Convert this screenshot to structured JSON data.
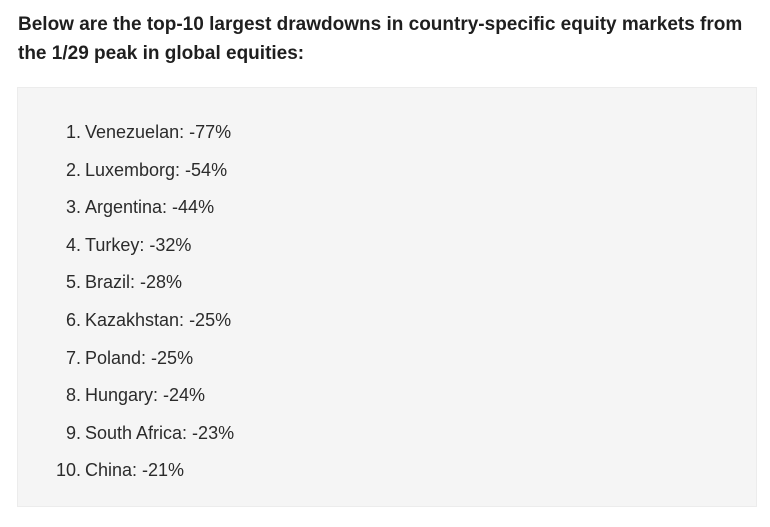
{
  "intro": {
    "text": "Below are the top-10 largest drawdowns in country-specific equity markets from the 1/29 peak in global equities:"
  },
  "list": {
    "items": [
      {
        "num": "1.",
        "label": "Venezuelan: -77%"
      },
      {
        "num": "2.",
        "label": "Luxemborg: -54%"
      },
      {
        "num": "3.",
        "label": "Argentina: -44%"
      },
      {
        "num": "4.",
        "label": "Turkey: -32%"
      },
      {
        "num": "5.",
        "label": "Brazil: -28%"
      },
      {
        "num": "6.",
        "label": "Kazakhstan: -25%"
      },
      {
        "num": "7.",
        "label": "Poland: -25%"
      },
      {
        "num": "8.",
        "label": "Hungary: -24%"
      },
      {
        "num": "9.",
        "label": "South Africa: -23%"
      },
      {
        "num": "10.",
        "label": "China: -21%"
      }
    ]
  }
}
